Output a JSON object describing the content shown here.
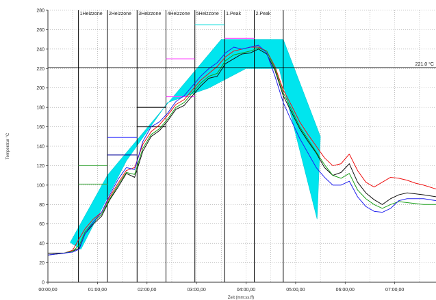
{
  "chart_data": {
    "type": "line",
    "title": "",
    "xlabel": "Zeit (mm:ss.ff)",
    "ylabel": "Temperatur °C",
    "xlim": [
      0,
      470
    ],
    "ylim": [
      0,
      280
    ],
    "y_ticks": [
      0,
      20,
      40,
      60,
      80,
      100,
      120,
      140,
      160,
      180,
      200,
      220,
      240,
      260,
      280
    ],
    "x_ticks": [
      {
        "minute": 0,
        "label": "00:00,00"
      },
      {
        "minute": 60,
        "label": "01:00,00"
      },
      {
        "minute": 120,
        "label": "02:00,00"
      },
      {
        "minute": 180,
        "label": "03:00,00"
      },
      {
        "minute": 240,
        "label": "04:00,00"
      },
      {
        "minute": 300,
        "label": "05:00,00"
      },
      {
        "minute": 360,
        "label": "06:00,00"
      },
      {
        "minute": 420,
        "label": "07:00,00"
      }
    ],
    "zones": [
      {
        "label": "1Heizzone",
        "start": 37,
        "end": 72
      },
      {
        "label": "2Heizzone",
        "start": 72,
        "end": 108
      },
      {
        "label": "3Heizzone",
        "start": 108,
        "end": 143
      },
      {
        "label": "4Heizzone",
        "start": 143,
        "end": 178
      },
      {
        "label": "5Heizzone",
        "start": 178,
        "end": 214
      },
      {
        "label": "1.Peak",
        "start": 214,
        "end": 250
      },
      {
        "label": "2.Peak",
        "start": 250,
        "end": 285
      }
    ],
    "reference_line": {
      "value": 221,
      "label": "221,0 °C",
      "color": "#000000"
    },
    "tolerance_band": {
      "color": "#00e5ee",
      "polygon": [
        [
          27,
          41
        ],
        [
          72,
          110
        ],
        [
          210,
          250
        ],
        [
          285,
          250
        ],
        [
          330,
          150
        ],
        [
          326,
          65
        ],
        [
          280,
          220
        ],
        [
          240,
          220
        ],
        [
          195,
          200
        ],
        [
          145,
          185
        ],
        [
          95,
          125
        ],
        [
          40,
          34
        ]
      ]
    },
    "setpoints": [
      {
        "zone": 1,
        "values": [
          {
            "v": 120,
            "color": "#44aa44"
          },
          {
            "v": 101,
            "color": "#44aa44"
          }
        ]
      },
      {
        "zone": 2,
        "values": [
          {
            "v": 149,
            "color": "#3333ff"
          },
          {
            "v": 131,
            "color": "#000099"
          }
        ]
      },
      {
        "zone": 3,
        "values": [
          {
            "v": 180,
            "color": "#111111"
          },
          {
            "v": 160,
            "color": "#111111"
          }
        ]
      },
      {
        "zone": 4,
        "values": [
          {
            "v": 230,
            "color": "#ff44ff"
          },
          {
            "v": 191,
            "color": "#ff44ff"
          }
        ]
      },
      {
        "zone": 5,
        "values": [
          {
            "v": 265,
            "color": "#00dddd"
          }
        ]
      },
      {
        "zone": 6,
        "values": [
          {
            "v": 251,
            "color": "#ff44ff"
          }
        ]
      }
    ],
    "series": [
      {
        "color": "#ee1111",
        "x": [
          0,
          20,
          30,
          38,
          45,
          55,
          65,
          75,
          85,
          95,
          105,
          115,
          125,
          135,
          145,
          155,
          165,
          175,
          185,
          195,
          205,
          215,
          225,
          235,
          245,
          255,
          265,
          275,
          285,
          295,
          305,
          315,
          325,
          335,
          345,
          355,
          365,
          375,
          385,
          395,
          405,
          415,
          425,
          435,
          445,
          455,
          470
        ],
        "y": [
          28,
          30,
          33,
          45,
          55,
          65,
          72,
          88,
          102,
          115,
          118,
          142,
          155,
          162,
          172,
          183,
          188,
          198,
          208,
          215,
          222,
          232,
          238,
          240,
          242,
          242,
          238,
          222,
          198,
          182,
          165,
          152,
          140,
          128,
          120,
          122,
          132,
          115,
          103,
          98,
          103,
          108,
          107,
          105,
          102,
          100,
          96
        ]
      },
      {
        "color": "#111111",
        "x": [
          0,
          20,
          30,
          38,
          45,
          55,
          65,
          75,
          85,
          95,
          105,
          115,
          125,
          135,
          145,
          155,
          165,
          175,
          185,
          195,
          205,
          215,
          225,
          235,
          245,
          255,
          265,
          275,
          285,
          295,
          305,
          315,
          325,
          335,
          345,
          355,
          365,
          375,
          385,
          395,
          405,
          415,
          425,
          435,
          445,
          455,
          470
        ],
        "y": [
          30,
          30,
          32,
          35,
          50,
          60,
          68,
          85,
          98,
          112,
          108,
          135,
          150,
          156,
          166,
          178,
          182,
          192,
          202,
          210,
          212,
          225,
          230,
          235,
          236,
          240,
          235,
          218,
          192,
          175,
          158,
          145,
          133,
          118,
          110,
          113,
          122,
          103,
          92,
          85,
          80,
          86,
          90,
          92,
          91,
          90,
          88
        ]
      },
      {
        "color": "#1a9f1a",
        "x": [
          0,
          20,
          30,
          38,
          45,
          55,
          65,
          75,
          85,
          95,
          105,
          115,
          125,
          135,
          145,
          155,
          165,
          175,
          185,
          195,
          205,
          215,
          225,
          235,
          245,
          255,
          265,
          275,
          285,
          295,
          305,
          315,
          325,
          335,
          345,
          355,
          365,
          375,
          385,
          395,
          405,
          415,
          425,
          435,
          445,
          455,
          470
        ],
        "y": [
          28,
          30,
          32,
          38,
          52,
          62,
          70,
          86,
          100,
          113,
          111,
          138,
          152,
          158,
          168,
          180,
          185,
          195,
          205,
          212,
          215,
          228,
          234,
          236,
          238,
          241,
          238,
          220,
          195,
          178,
          160,
          147,
          134,
          121,
          110,
          107,
          112,
          95,
          86,
          80,
          76,
          80,
          83,
          82,
          81,
          80,
          80
        ]
      },
      {
        "color": "#2222ee",
        "x": [
          0,
          20,
          30,
          38,
          45,
          55,
          65,
          75,
          85,
          95,
          105,
          115,
          125,
          135,
          145,
          155,
          165,
          175,
          185,
          195,
          205,
          215,
          225,
          235,
          245,
          255,
          265,
          275,
          285,
          295,
          305,
          315,
          325,
          335,
          345,
          355,
          365,
          375,
          385,
          395,
          405,
          415,
          425,
          435,
          445,
          455,
          470
        ],
        "y": [
          28,
          30,
          31,
          34,
          50,
          62,
          72,
          90,
          106,
          118,
          116,
          145,
          160,
          165,
          174,
          186,
          192,
          202,
          212,
          220,
          226,
          236,
          242,
          240,
          242,
          244,
          236,
          212,
          185,
          166,
          148,
          133,
          118,
          108,
          100,
          100,
          104,
          88,
          78,
          73,
          72,
          76,
          84,
          86,
          86,
          86,
          84
        ]
      }
    ]
  }
}
